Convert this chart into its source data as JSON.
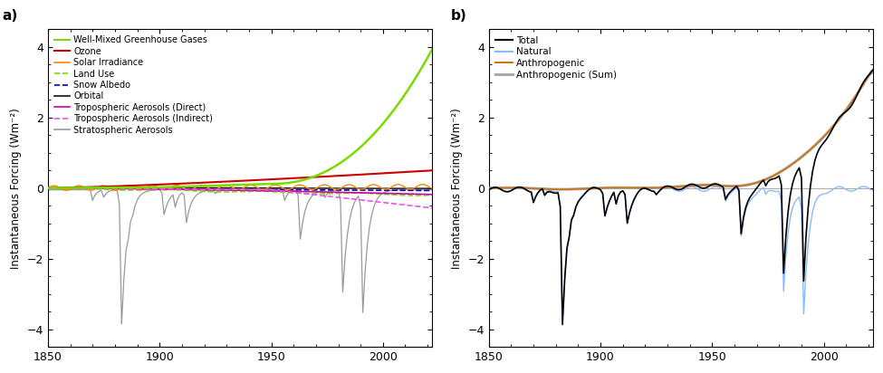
{
  "title_a": "a)",
  "title_b": "b)",
  "ylabel": "Instantaneous Forcing (Wm⁻²)",
  "xlim": [
    1850,
    2022
  ],
  "ylim": [
    -4.5,
    4.5
  ],
  "yticks": [
    -4,
    -2,
    0,
    2,
    4
  ],
  "xticks": [
    1850,
    1900,
    1950,
    2000
  ],
  "colors": {
    "ghg": "#77dd00",
    "ozone": "#cc0000",
    "solar": "#ff8800",
    "landuse": "#77dd00",
    "snow": "#0000bb",
    "orbital": "#111111",
    "trop_direct": "#cc00aa",
    "trop_indirect": "#ee55ee",
    "strat": "#999999",
    "total": "#000000",
    "natural": "#88bbff",
    "anthro": "#cc7722",
    "anthro_sum": "#aaaaaa"
  },
  "legend_a": [
    "Well-Mixed Greenhouse Gases",
    "Ozone",
    "Solar Irradiance",
    "Land Use",
    "Snow Albedo",
    "Orbital",
    "Tropospheric Aerosols (Direct)",
    "Tropospheric Aerosols (Indirect)",
    "Stratospheric Aerosols"
  ],
  "legend_b": [
    "Total",
    "Natural",
    "Anthropogenic",
    "Anthropogenic (Sum)"
  ]
}
